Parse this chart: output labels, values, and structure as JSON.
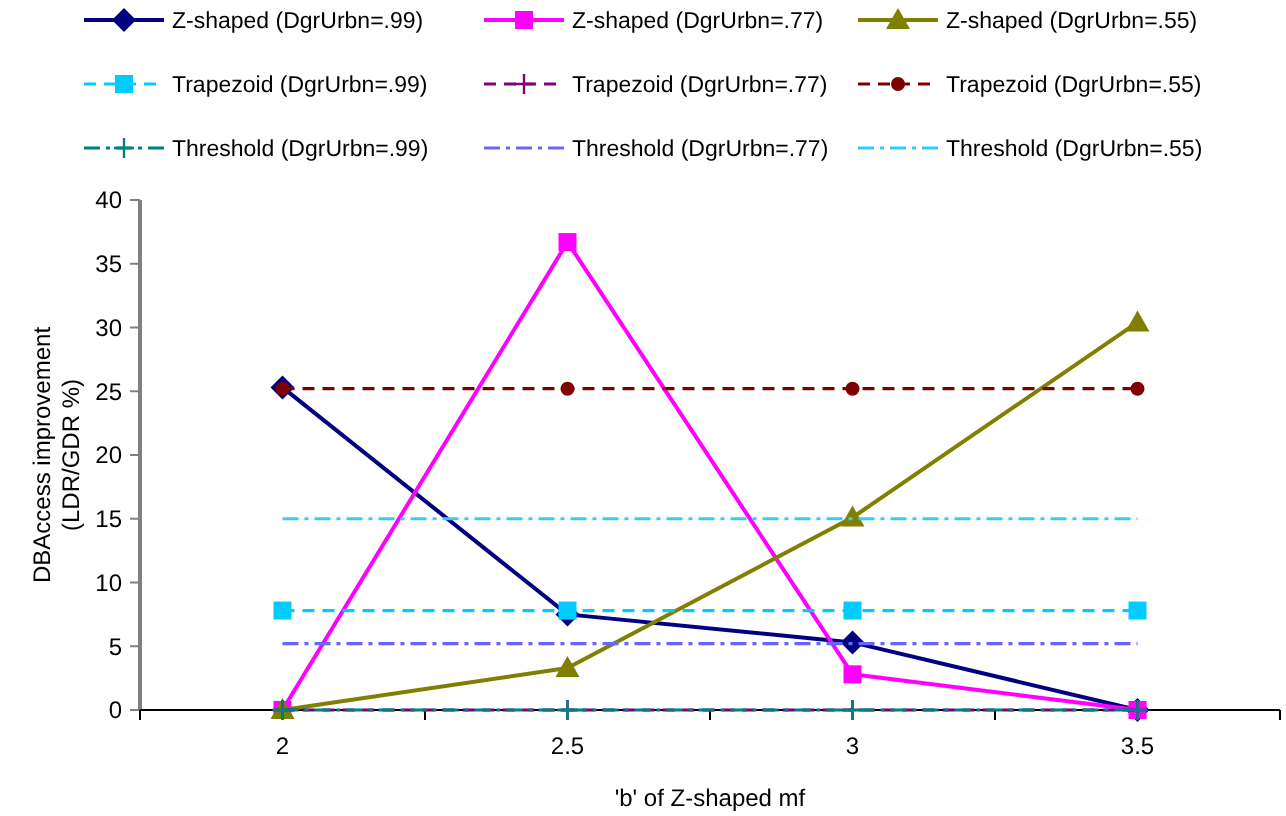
{
  "chart_data": {
    "type": "line",
    "xlabel": "'b' of Z-shaped mf",
    "ylabel": "DBAccess improvement (LDR/GDR %)",
    "categories": [
      "2",
      "2.5",
      "3",
      "3.5"
    ],
    "ylim": [
      0,
      40
    ],
    "yticks": [
      0,
      5,
      10,
      15,
      20,
      25,
      30,
      35,
      40
    ],
    "grid": false,
    "legend": "top",
    "series": [
      {
        "name": "Z-shaped (DgrUrbn=.99)",
        "color": "#000080",
        "marker": "diamond",
        "line_style": "solid",
        "values": [
          25.3,
          7.5,
          5.3,
          0
        ]
      },
      {
        "name": "Z-shaped (DgrUrbn=.77)",
        "color": "#ff00ff",
        "marker": "square",
        "line_style": "solid",
        "values": [
          0,
          36.7,
          2.8,
          0
        ]
      },
      {
        "name": "Z-shaped (DgrUrbn=.55)",
        "color": "#808000",
        "marker": "triangle",
        "line_style": "solid",
        "values": [
          0,
          3.3,
          15.1,
          30.4
        ]
      },
      {
        "name": "Trapezoid (DgrUrbn=.99)",
        "color": "#00ccff",
        "marker": "square",
        "line_style": "dashed",
        "values": [
          7.8,
          7.8,
          7.8,
          7.8
        ]
      },
      {
        "name": "Trapezoid (DgrUrbn=.77)",
        "color": "#800080",
        "marker": "cross",
        "line_style": "dashed",
        "values": [
          0,
          0,
          0,
          0
        ]
      },
      {
        "name": "Trapezoid (DgrUrbn=.55)",
        "color": "#800000",
        "marker": "circle",
        "line_style": "dashed",
        "values": [
          25.2,
          25.2,
          25.2,
          25.2
        ]
      },
      {
        "name": "Threshold (DgrUrbn=.99)",
        "color": "#008080",
        "marker": "cross",
        "line_style": "dashdot",
        "values": [
          0,
          0,
          0,
          0
        ]
      },
      {
        "name": "Threshold (DgrUrbn=.77)",
        "color": "#6666ff",
        "marker": "none",
        "line_style": "dashdot",
        "values": [
          5.2,
          5.2,
          5.2,
          5.2
        ]
      },
      {
        "name": "Threshold (DgrUrbn=.55)",
        "color": "#33ccff",
        "marker": "none",
        "line_style": "dashdot",
        "values": [
          15,
          15,
          15,
          15
        ]
      }
    ]
  }
}
